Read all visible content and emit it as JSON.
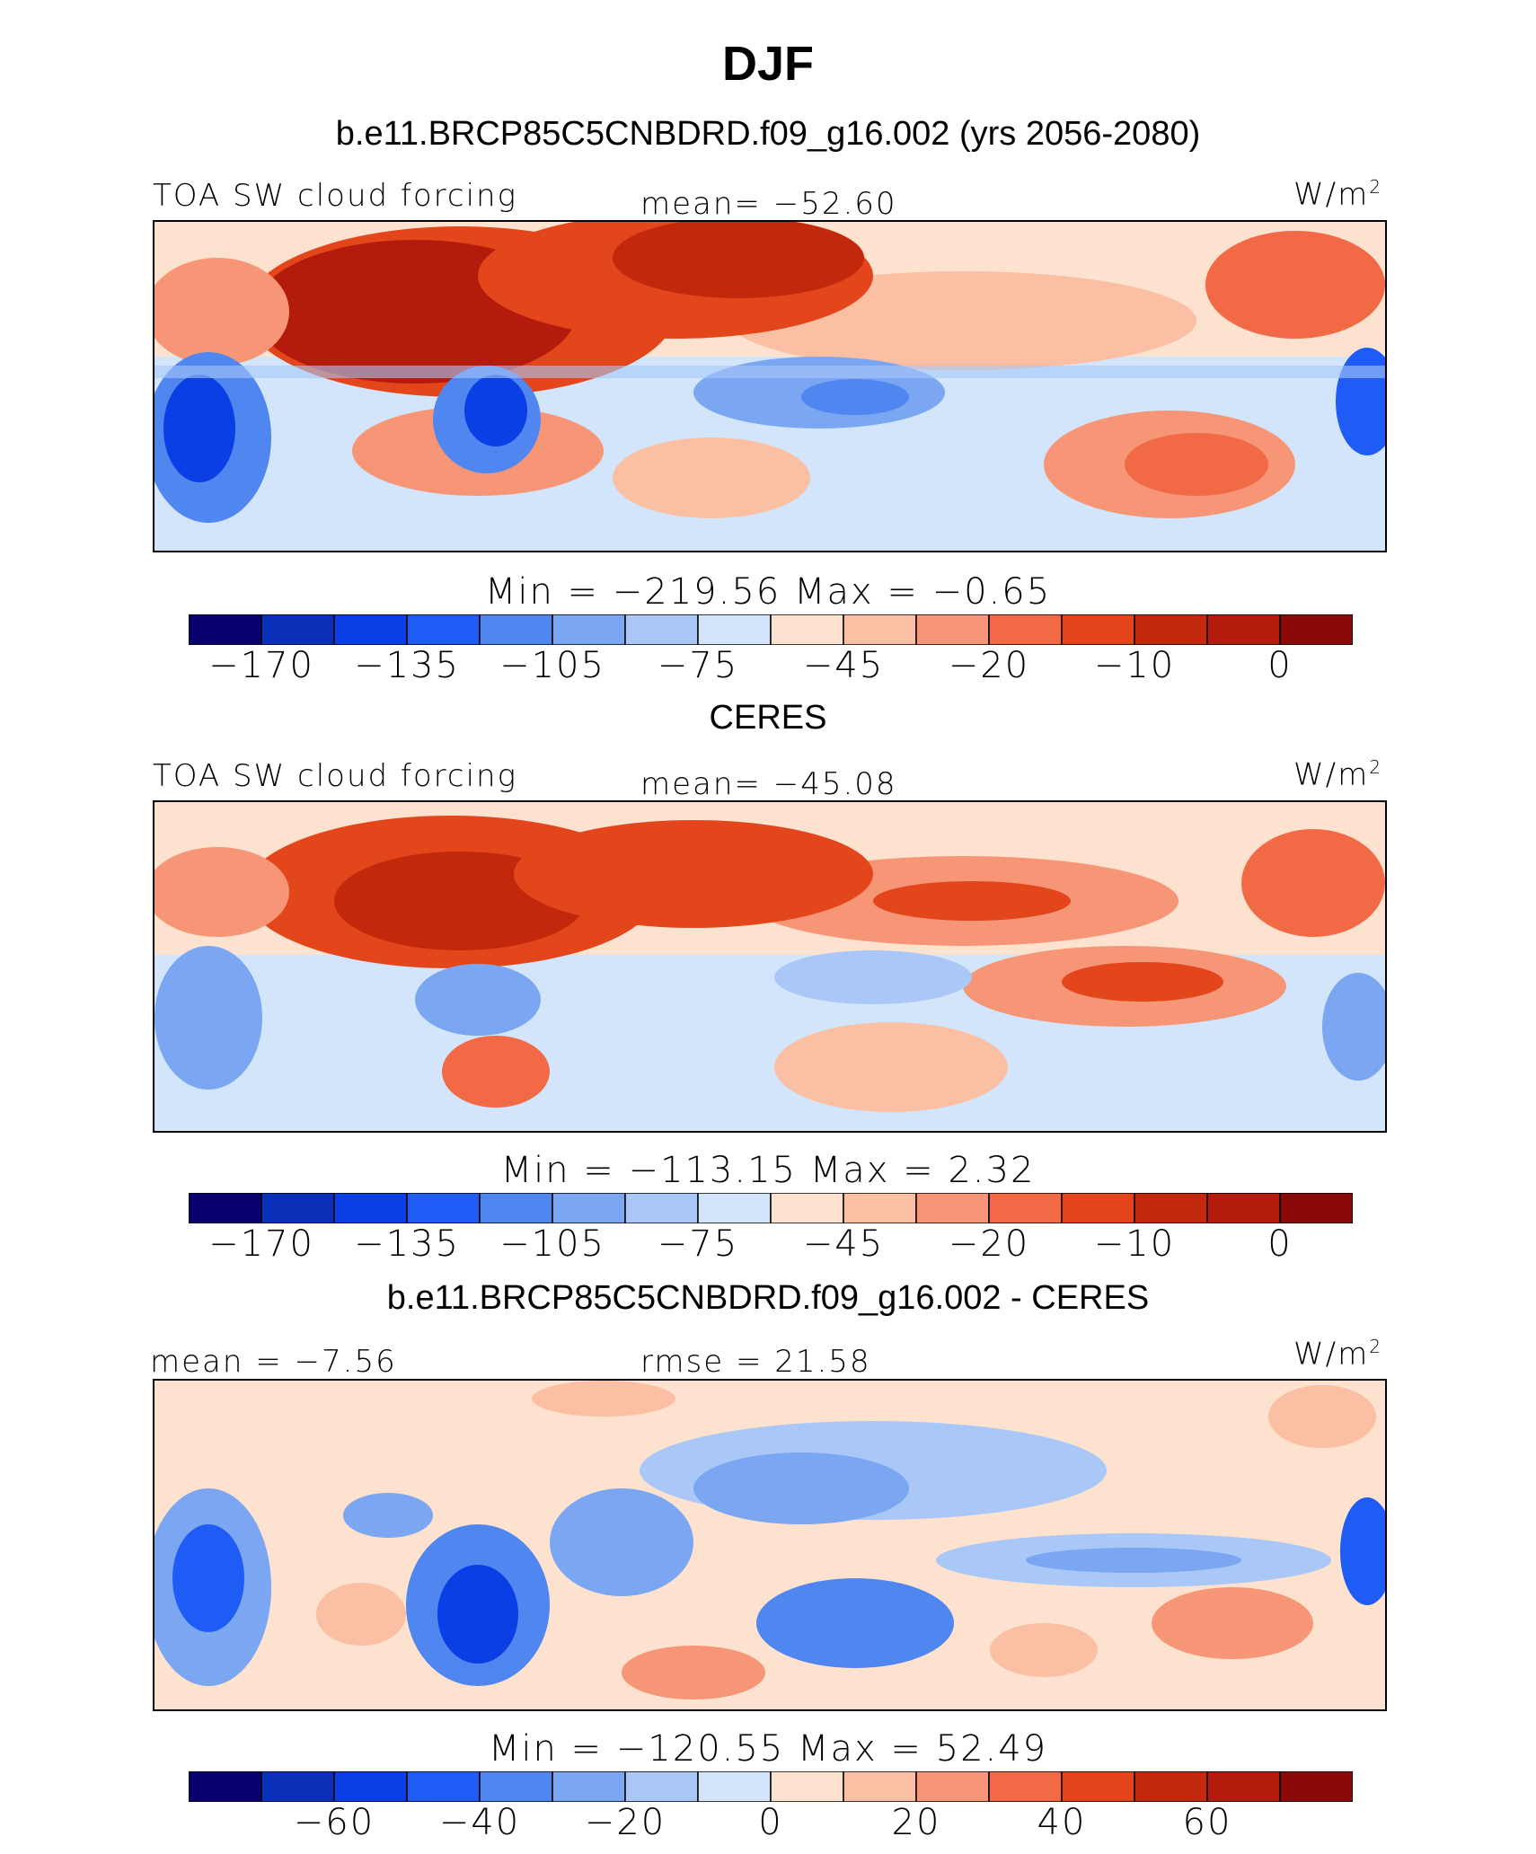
{
  "title": "DJF",
  "panels": [
    {
      "subtitle": "b.e11.BRCP85C5CNBDRD.f09_g16.002 (yrs 2056-2080)",
      "left_label": "TOA SW cloud forcing",
      "center_label": "mean=  −52.60",
      "units": "W/m",
      "units_sup": "2",
      "minmax": "Min  =  −219.56  Max  =   −0.65",
      "colorbar_ticks": [
        "−170",
        "−135",
        "−105",
        "−75",
        "−45",
        "−20",
        "−10",
        "0"
      ]
    },
    {
      "subtitle": "CERES",
      "left_label": "TOA SW cloud forcing",
      "center_label": "mean=  −45.08",
      "units": "W/m",
      "units_sup": "2",
      "minmax": "Min  =  −113.15  Max  =    2.32",
      "colorbar_ticks": [
        "−170",
        "−135",
        "−105",
        "−75",
        "−45",
        "−20",
        "−10",
        "0"
      ]
    },
    {
      "subtitle": "b.e11.BRCP85C5CNBDRD.f09_g16.002 - CERES",
      "left_label": "mean  =   −7.56",
      "center_label": "rmse  =   21.58",
      "units": "W/m",
      "units_sup": "2",
      "minmax": "Min  =  −120.55  Max  =   52.49",
      "colorbar_ticks": [
        "−60",
        "−40",
        "−20",
        "0",
        "20",
        "40",
        "60"
      ]
    }
  ],
  "colorbar_colors": [
    "#08006f",
    "#0a2fb8",
    "#0a3fe6",
    "#1f5cf5",
    "#4f86f0",
    "#7aa6f2",
    "#a9c8f8",
    "#d3e5fb",
    "#fde2d0",
    "#fbbfa3",
    "#f79677",
    "#f26a45",
    "#e4461b",
    "#c2280c",
    "#b31c0c",
    "#8a0a0a"
  ]
}
